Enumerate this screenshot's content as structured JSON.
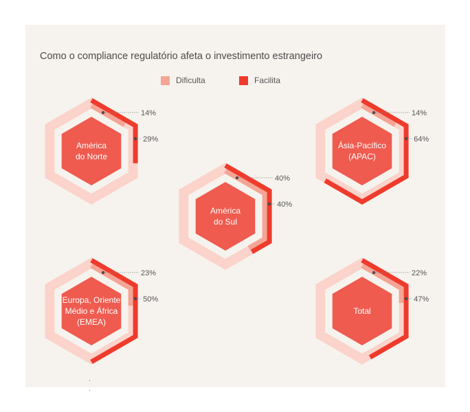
{
  "chart_data": {
    "type": "hexagon-progress",
    "title": "Como o compliance regulatório afeta o investimento estrangeiro",
    "legend": [
      {
        "label": "Dificulta",
        "color": "#f4a595"
      },
      {
        "label": "Facilita",
        "color": "#ef3b2c"
      }
    ],
    "colors": {
      "inner_fill": "#ef5b4f",
      "track": "#fbd3cb",
      "dificulta": "#f4a595",
      "facilita": "#ef3b2c"
    },
    "regions": [
      {
        "name": "América do Norte",
        "label_lines": [
          "América",
          "do Norte"
        ],
        "dificulta": 14,
        "facilita": 29
      },
      {
        "name": "Ásia-Pacífico (APAC)",
        "label_lines": [
          "Ásia-Pacífico",
          "(APAC)"
        ],
        "dificulta": 14,
        "facilita": 64
      },
      {
        "name": "América do Sul",
        "label_lines": [
          "América",
          "do Sul"
        ],
        "dificulta": 40,
        "facilita": 40
      },
      {
        "name": "Europa, Oriente Médio e África (EMEA)",
        "label_lines": [
          "Europa, Oriente",
          "Médio e África",
          "(EMEA)"
        ],
        "dificulta": 23,
        "facilita": 50
      },
      {
        "name": "Total",
        "label_lines": [
          "Total"
        ],
        "dificulta": 22,
        "facilita": 47
      }
    ]
  }
}
